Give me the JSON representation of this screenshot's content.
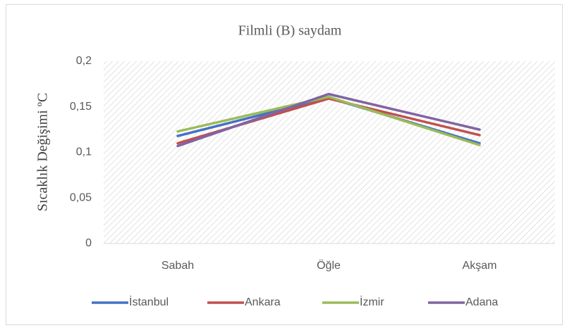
{
  "chart_data": {
    "type": "line",
    "title": "Filmli (B) saydam",
    "y_label": "Sıcaklık Değişimi ºC",
    "categories": [
      "Sabah",
      "Öğle",
      "Akşam"
    ],
    "series": [
      {
        "name": "İstanbul",
        "color": "#4472c4",
        "values": [
          0.118,
          0.16,
          0.11
        ]
      },
      {
        "name": "Ankara",
        "color": "#c0504d",
        "values": [
          0.11,
          0.159,
          0.119
        ]
      },
      {
        "name": "İzmir",
        "color": "#9bbb59",
        "values": [
          0.123,
          0.161,
          0.108
        ]
      },
      {
        "name": "Adana",
        "color": "#8064a2",
        "values": [
          0.107,
          0.164,
          0.125
        ]
      }
    ],
    "ylim": [
      0,
      0.2
    ],
    "yticks": [
      0,
      {
        "value": 0.05,
        "label": "0,05"
      },
      {
        "value": 0.1,
        "label": "0,1"
      },
      {
        "value": 0.15,
        "label": "0,15"
      },
      {
        "value": 0.2,
        "label": "0,2"
      }
    ],
    "legend": "bottom"
  }
}
